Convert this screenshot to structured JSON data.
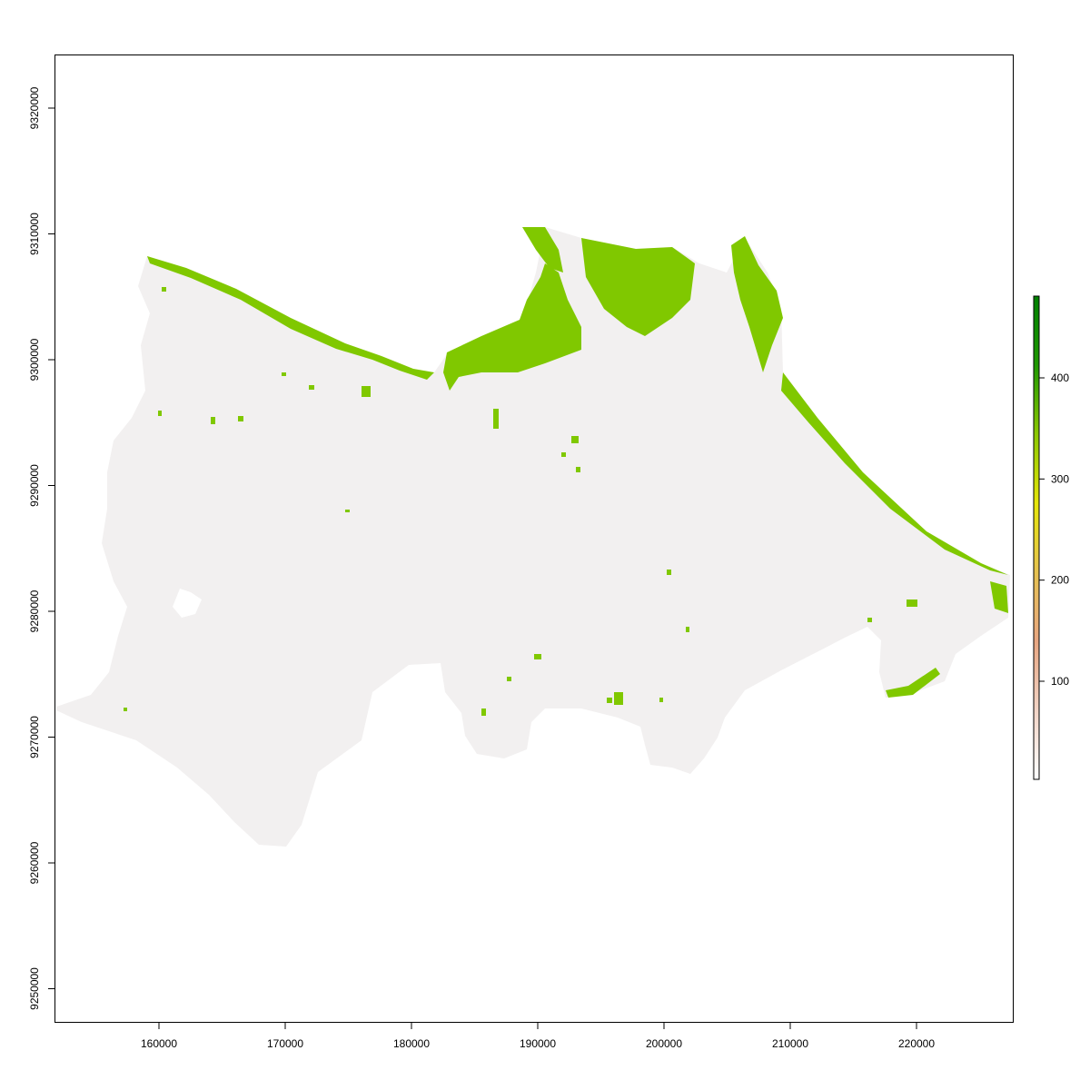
{
  "map": {
    "x_axis": {
      "ticks": [
        {
          "value": 160000,
          "label": "160000"
        },
        {
          "value": 170000,
          "label": "170000"
        },
        {
          "value": 180000,
          "label": "180000"
        },
        {
          "value": 190000,
          "label": "190000"
        },
        {
          "value": 200000,
          "label": "200000"
        },
        {
          "value": 210000,
          "label": "210000"
        },
        {
          "value": 220000,
          "label": "220000"
        }
      ]
    },
    "y_axis": {
      "ticks": [
        {
          "value": 9250000,
          "label": "9250000"
        },
        {
          "value": 9260000,
          "label": "9260000"
        },
        {
          "value": 9270000,
          "label": "9270000"
        },
        {
          "value": 9280000,
          "label": "9280000"
        },
        {
          "value": 9290000,
          "label": "9290000"
        },
        {
          "value": 9300000,
          "label": "9300000"
        },
        {
          "value": 9310000,
          "label": "9310000"
        },
        {
          "value": 9320000,
          "label": "9320000"
        }
      ]
    },
    "legend": {
      "position": "right",
      "ticks": [
        {
          "value": 100,
          "label": "100"
        },
        {
          "value": 200,
          "label": "200"
        },
        {
          "value": 300,
          "label": "300"
        },
        {
          "value": 400,
          "label": "400"
        }
      ],
      "colors": [
        "#ffffff",
        "#f2d4c6",
        "#e8a682",
        "#e6c250",
        "#e6e60a",
        "#8cc800",
        "#1f9900",
        "#008000"
      ]
    },
    "colors": {
      "land": "#f2f0f0",
      "vegetation": "#80c800",
      "frame": "#000000"
    }
  }
}
